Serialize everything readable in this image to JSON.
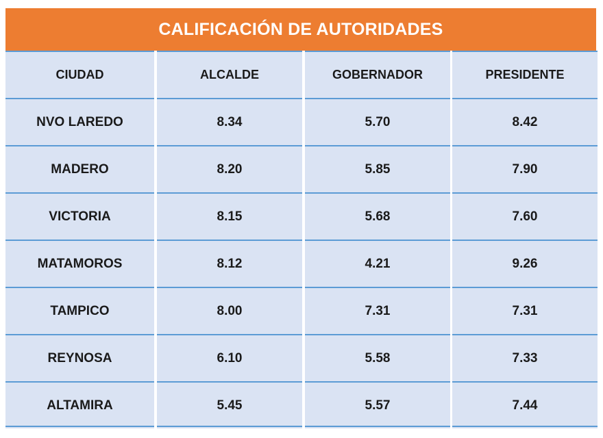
{
  "title": "CALIFICACIÓN DE AUTORIDADES",
  "colors": {
    "header_bg": "#ed7d31",
    "cell_bg": "#dae3f3",
    "grid": "#5b9bd5"
  },
  "chart_data": {
    "type": "table",
    "title": "CALIFICACIÓN DE AUTORIDADES",
    "columns": [
      "CIUDAD",
      "ALCALDE",
      "GOBERNADOR",
      "PRESIDENTE"
    ],
    "rows": [
      {
        "ciudad": "NVO LAREDO",
        "alcalde": "8.34",
        "gobernador": "5.70",
        "presidente": "8.42"
      },
      {
        "ciudad": "MADERO",
        "alcalde": "8.20",
        "gobernador": "5.85",
        "presidente": "7.90"
      },
      {
        "ciudad": "VICTORIA",
        "alcalde": "8.15",
        "gobernador": "5.68",
        "presidente": "7.60"
      },
      {
        "ciudad": "MATAMOROS",
        "alcalde": "8.12",
        "gobernador": "4.21",
        "presidente": "9.26"
      },
      {
        "ciudad": "TAMPICO",
        "alcalde": "8.00",
        "gobernador": "7.31",
        "presidente": "7.31"
      },
      {
        "ciudad": "REYNOSA",
        "alcalde": "6.10",
        "gobernador": "5.58",
        "presidente": "7.33"
      },
      {
        "ciudad": "ALTAMIRA",
        "alcalde": "5.45",
        "gobernador": "5.57",
        "presidente": "7.44"
      }
    ]
  }
}
